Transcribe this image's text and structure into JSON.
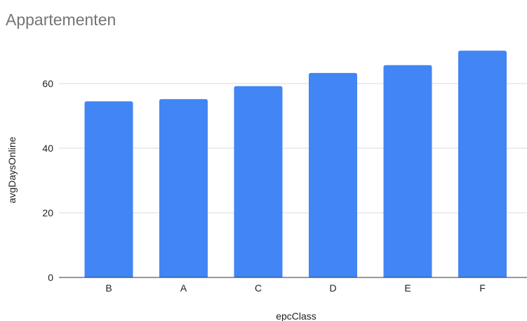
{
  "chart_data": {
    "type": "bar",
    "title": "Appartementen",
    "xlabel": "epcClass",
    "ylabel": "avgDaysOnline",
    "categories": [
      "B",
      "A",
      "C",
      "D",
      "E",
      "F"
    ],
    "values": [
      54.5,
      55.2,
      59.2,
      63.3,
      65.7,
      70.2
    ],
    "ylim": [
      0,
      73
    ],
    "yticks": [
      0,
      20,
      40,
      60
    ],
    "grid": true,
    "legend": "none",
    "bar_color": "#4285f4"
  }
}
